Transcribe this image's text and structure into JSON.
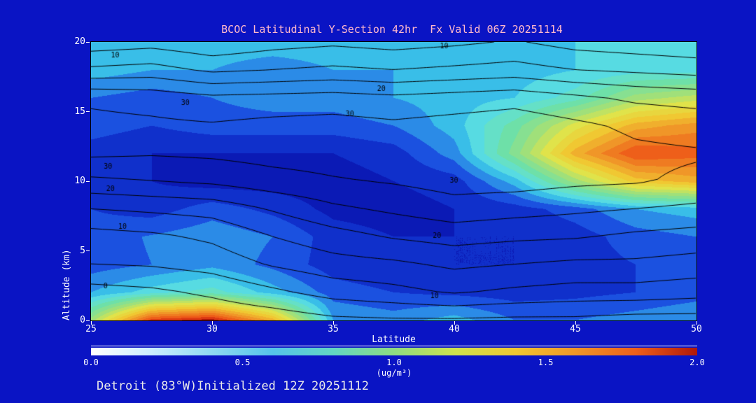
{
  "colors": {
    "background": "#0a14c4",
    "title": "#ffb9cb",
    "axis_text": "#ffffff",
    "tick_text": "#ffffff",
    "footer_text": "#e9e9e9",
    "contour_line": "#000000",
    "colorbar_frame": "#ffffff"
  },
  "footer": {
    "text": "Detroit (83°W)Initialized 12Z 20251112"
  },
  "chart_data": {
    "type": "heatmap",
    "title": "BCOC Latitudinal Y-Section 42hr  Fx Valid 06Z 20251114",
    "xlabel": "Latitude",
    "ylabel": "Altitude (km)",
    "units": "(ug/m³)",
    "xlim": [
      25,
      50
    ],
    "ylim": [
      0,
      20
    ],
    "x_ticks": [
      25,
      30,
      35,
      40,
      45,
      50
    ],
    "y_ticks": [
      0,
      5,
      10,
      15,
      20
    ],
    "heatmap": {
      "lat": [
        25,
        27.5,
        30,
        32.5,
        35,
        37.5,
        40,
        42.5,
        45,
        47.5,
        50
      ],
      "alt": [
        0,
        2,
        4,
        6,
        8,
        10,
        12,
        14,
        16,
        18,
        20
      ],
      "values_ug_m3": [
        [
          1.0,
          1.9,
          2.0,
          1.5,
          0.45,
          0.4,
          0.5,
          0.35,
          0.35,
          0.4,
          0.45
        ],
        [
          0.45,
          0.6,
          0.7,
          0.5,
          0.3,
          0.25,
          0.22,
          0.2,
          0.22,
          0.25,
          0.3
        ],
        [
          0.3,
          0.35,
          0.42,
          0.32,
          0.2,
          0.16,
          0.15,
          0.15,
          0.2,
          0.25,
          0.3
        ],
        [
          0.3,
          0.36,
          0.42,
          0.35,
          0.2,
          0.15,
          0.15,
          0.15,
          0.2,
          0.3,
          0.35
        ],
        [
          0.25,
          0.2,
          0.3,
          0.22,
          0.12,
          0.1,
          0.15,
          0.2,
          0.3,
          0.45,
          0.5
        ],
        [
          0.2,
          0.15,
          0.1,
          0.1,
          0.1,
          0.15,
          0.2,
          0.5,
          1.0,
          1.4,
          1.5
        ],
        [
          0.2,
          0.15,
          0.15,
          0.15,
          0.15,
          0.2,
          0.4,
          0.9,
          1.5,
          1.85,
          1.8
        ],
        [
          0.3,
          0.25,
          0.3,
          0.3,
          0.3,
          0.35,
          0.5,
          0.8,
          1.2,
          1.5,
          1.6
        ],
        [
          0.35,
          0.3,
          0.35,
          0.4,
          0.4,
          0.45,
          0.5,
          0.55,
          0.7,
          1.0,
          1.1
        ],
        [
          0.5,
          0.45,
          0.45,
          0.4,
          0.45,
          0.45,
          0.5,
          0.5,
          0.55,
          0.6,
          0.6
        ],
        [
          0.5,
          0.5,
          0.5,
          0.5,
          0.5,
          0.5,
          0.5,
          0.52,
          0.55,
          0.55,
          0.55
        ]
      ]
    },
    "colormap": [
      [
        0.0,
        "#0a10a0"
      ],
      [
        0.15,
        "#0b1fc0"
      ],
      [
        0.3,
        "#1b51e0"
      ],
      [
        0.42,
        "#2e96e8"
      ],
      [
        0.52,
        "#3cc8e8"
      ],
      [
        0.62,
        "#5ee0e0"
      ],
      [
        0.8,
        "#6ee0a8"
      ],
      [
        1.0,
        "#a0e07a"
      ],
      [
        1.2,
        "#e0e34a"
      ],
      [
        1.4,
        "#f0c832"
      ],
      [
        1.6,
        "#f09628"
      ],
      [
        1.8,
        "#ee5f1a"
      ],
      [
        1.95,
        "#d42810"
      ],
      [
        2.0,
        "#a81408"
      ]
    ],
    "colorbar": {
      "min": 0,
      "max": 2,
      "ticks": [
        "0.0",
        "0.5",
        "1.0",
        "1.5",
        "2.0"
      ],
      "stops": [
        [
          0.0,
          "#ffffff"
        ],
        [
          0.2,
          "#cceeff"
        ],
        [
          0.4,
          "#8fd9f2"
        ],
        [
          0.6,
          "#55c3ea"
        ],
        [
          0.8,
          "#63d6c3"
        ],
        [
          1.0,
          "#8fdc82"
        ],
        [
          1.2,
          "#cfe34e"
        ],
        [
          1.4,
          "#f0c832"
        ],
        [
          1.6,
          "#f09628"
        ],
        [
          1.8,
          "#ee5f1a"
        ],
        [
          2.0,
          "#b01808"
        ]
      ]
    },
    "contour_overlay": {
      "levels": [
        0,
        5,
        10,
        15,
        20,
        25,
        30
      ],
      "labeled_levels": [
        0,
        10,
        20,
        30
      ],
      "lat": [
        25,
        27.5,
        30,
        32.5,
        35,
        37.5,
        40,
        42.5,
        45,
        47.5,
        50
      ],
      "alt": [
        0,
        2,
        4,
        6,
        8,
        10,
        12,
        14,
        16,
        18,
        20
      ],
      "values": [
        [
          -6,
          -5,
          -4,
          -3,
          -1,
          -0.5,
          -0.5,
          -1,
          -1,
          -2,
          -2
        ],
        [
          -2,
          -1,
          1,
          4,
          7,
          8.5,
          10.5,
          9,
          8,
          8,
          7
        ],
        [
          5,
          5.5,
          7,
          10.5,
          13,
          14,
          16,
          15,
          14,
          14,
          13
        ],
        [
          8,
          9,
          11,
          15,
          18,
          20.5,
          22,
          21,
          20.5,
          19,
          18
        ],
        [
          15,
          16,
          17,
          20.5,
          24,
          26,
          28,
          27,
          26,
          25,
          24
        ],
        [
          24,
          25,
          26,
          28,
          29.5,
          30.5,
          32,
          32,
          31,
          30.5,
          29
        ],
        [
          31,
          30.5,
          31,
          32,
          32.5,
          33,
          34,
          34,
          33,
          31,
          30.5
        ],
        [
          31.5,
          31,
          30.5,
          31.5,
          32,
          31,
          32,
          33,
          31,
          29,
          28
        ],
        [
          29,
          28,
          26,
          26.5,
          27,
          26,
          27,
          28,
          26,
          24,
          23
        ],
        [
          16,
          17,
          14,
          15,
          16,
          15,
          16,
          17,
          15,
          14,
          13
        ],
        [
          7,
          8,
          6,
          8,
          9,
          8,
          9,
          10.5,
          8,
          7,
          6
        ]
      ],
      "labels": [
        {
          "v": "10",
          "lat": 26.0,
          "alt": 19.0
        },
        {
          "v": "10",
          "lat": 39.6,
          "alt": 19.7
        },
        {
          "v": "20",
          "lat": 37.0,
          "alt": 16.6
        },
        {
          "v": "30",
          "lat": 28.9,
          "alt": 15.6
        },
        {
          "v": "30",
          "lat": 35.7,
          "alt": 14.8
        },
        {
          "v": "30",
          "lat": 25.7,
          "alt": 11.0
        },
        {
          "v": "20",
          "lat": 25.8,
          "alt": 9.4
        },
        {
          "v": "30",
          "lat": 40.0,
          "alt": 10.0
        },
        {
          "v": "10",
          "lat": 26.3,
          "alt": 6.7
        },
        {
          "v": "20",
          "lat": 39.3,
          "alt": 6.0
        },
        {
          "v": "0",
          "lat": 25.6,
          "alt": 2.4
        },
        {
          "v": "10",
          "lat": 39.2,
          "alt": 1.7
        }
      ]
    }
  }
}
